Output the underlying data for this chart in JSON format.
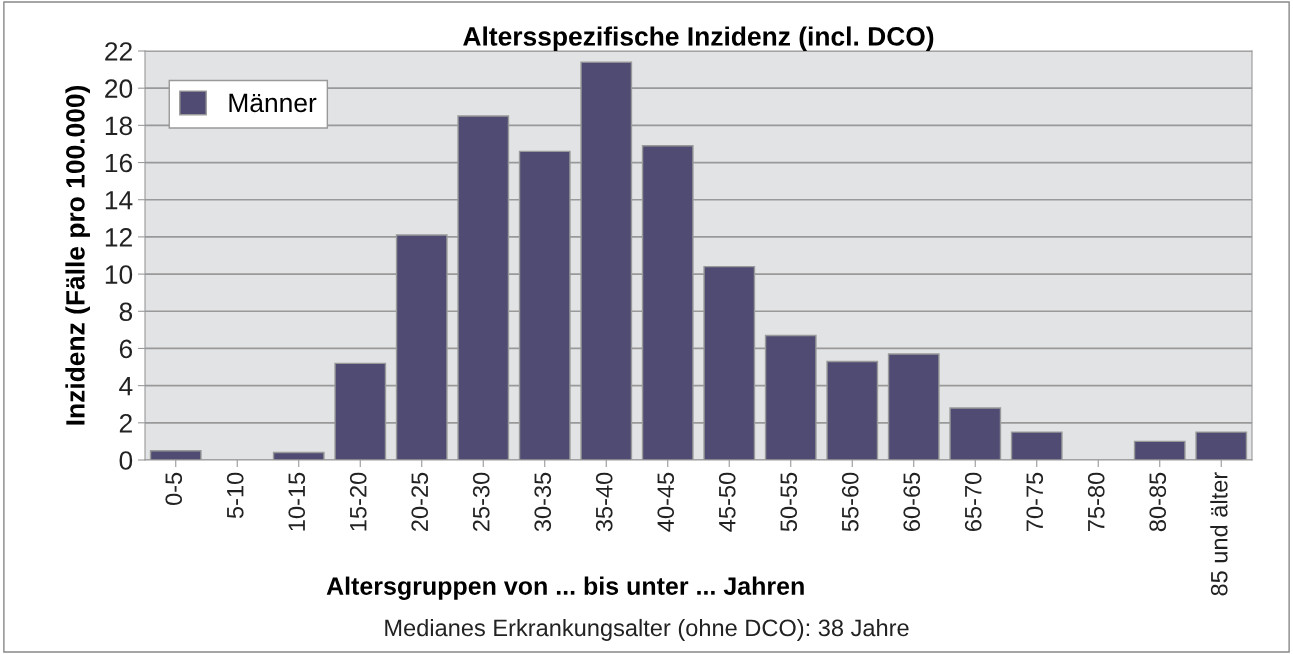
{
  "chart_data": {
    "type": "bar",
    "title": "Altersspezifische Inzidenz (incl. DCO)",
    "xlabel": "Altersgruppen von ... bis unter ... Jahren",
    "ylabel": "Inzidenz (Fälle pro 100.000)",
    "categories": [
      "0-5",
      "5-10",
      "10-15",
      "15-20",
      "20-25",
      "25-30",
      "30-35",
      "35-40",
      "40-45",
      "45-50",
      "50-55",
      "55-60",
      "60-65",
      "65-70",
      "70-75",
      "75-80",
      "80-85",
      "85 und älter"
    ],
    "series": [
      {
        "name": "Männer",
        "color": "#504b73",
        "values": [
          0.5,
          0,
          0.4,
          5.2,
          12.1,
          18.5,
          16.6,
          21.4,
          16.9,
          10.4,
          6.7,
          5.3,
          5.7,
          2.8,
          1.5,
          0,
          1.0,
          1.5
        ]
      }
    ],
    "ylim": [
      0,
      22
    ],
    "yticks": [
      0,
      2,
      4,
      6,
      8,
      10,
      12,
      14,
      16,
      18,
      20,
      22
    ],
    "grid": "y",
    "legend": "top left",
    "annotations": [
      "Medianes Erkrankungsalter (ohne DCO): 38 Jahre"
    ]
  }
}
